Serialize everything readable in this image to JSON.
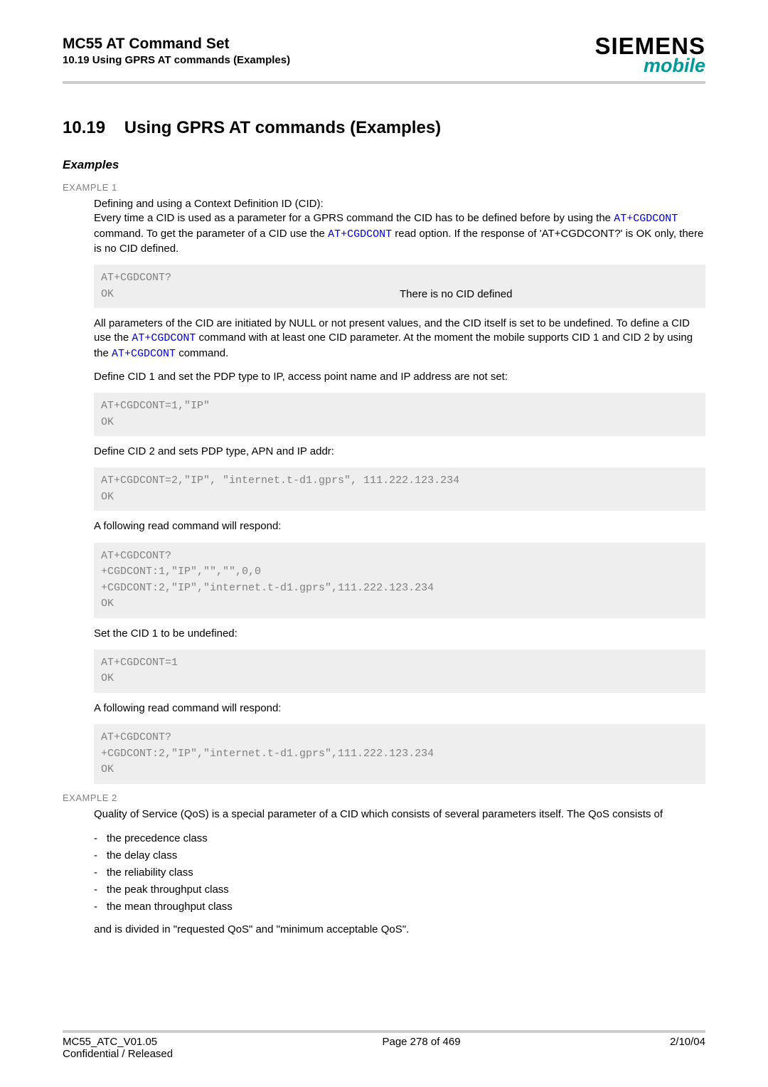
{
  "header": {
    "title": "MC55 AT Command Set",
    "subtitle": "10.19 Using GPRS AT commands (Examples)",
    "logo_top": "SIEMENS",
    "logo_bottom": "mobile"
  },
  "section": {
    "number": "10.19",
    "title": "Using GPRS AT commands (Examples)"
  },
  "examples_heading": "Examples",
  "example1": {
    "label": "EXAMPLE 1",
    "intro1_a": "Defining and using a Context Definition ID (CID):",
    "intro1_b_pre": "Every time a CID is used as a parameter for a GPRS command the CID has to be defined before by using the ",
    "intro1_b_link1": "AT+CGDCONT",
    "intro1_b_mid": " command. To get the parameter of a CID use the ",
    "intro1_b_link2": "AT+CGDCONT",
    "intro1_b_post": " read option. If the response of 'AT+CGDCONT?' is OK only, there is no CID defined.",
    "code1_l1": "AT+CGDCONT?",
    "code1_l2": "OK",
    "code1_l2_note": "There is no CID defined",
    "para2_pre": "All parameters of the CID are initiated by NULL or not present values, and the CID itself is set to be undefined. To define a CID use the ",
    "para2_link1": "AT+CGDCONT",
    "para2_mid": " command with at least one CID parameter. At the moment the mobile supports CID 1 and CID 2 by using the ",
    "para2_link2": "AT+CGDCONT",
    "para2_post": " command.",
    "para3": "Define CID 1 and set the PDP type to IP, access point name and IP address are not set:",
    "code2_l1": "AT+CGDCONT=1,\"IP\"",
    "code2_l2": "OK",
    "para4": "Define CID 2 and sets PDP type, APN and IP addr:",
    "code3_l1": "AT+CGDCONT=2,\"IP\", \"internet.t-d1.gprs\", 111.222.123.234",
    "code3_l2": "OK",
    "para5": "A following read command will respond:",
    "code4_l1": "AT+CGDCONT?",
    "code4_l2": "+CGDCONT:1,\"IP\",\"\",\"\",0,0",
    "code4_l3": "+CGDCONT:2,\"IP\",\"internet.t-d1.gprs\",111.222.123.234",
    "code4_l4": "OK",
    "para6": "Set the CID 1 to be undefined:",
    "code5_l1": "AT+CGDCONT=1",
    "code5_l2": "OK",
    "para7": "A following read command will respond:",
    "code6_l1": "AT+CGDCONT?",
    "code6_l2": "+CGDCONT:2,\"IP\",\"internet.t-d1.gprs\",111.222.123.234",
    "code6_l3": "OK"
  },
  "example2": {
    "label": "EXAMPLE 2",
    "para1": "Quality of Service (QoS) is a special parameter of a CID which consists of several parameters itself. The QoS consists of",
    "list": [
      "the precedence class",
      "the delay class",
      "the reliability class",
      "the peak throughput class",
      "the mean throughput class"
    ],
    "para2": "and is divided in \"requested QoS\" and \"minimum acceptable QoS\"."
  },
  "footer": {
    "left_l1": "MC55_ATC_V01.05",
    "left_l2": "Confidential / Released",
    "center": "Page 278 of 469",
    "right": "2/10/04"
  },
  "colors": {
    "rule": "#cccccc",
    "code_bg": "#eeeeee",
    "code_text": "#808080",
    "link": "#0000cc",
    "mobile": "#009999"
  }
}
